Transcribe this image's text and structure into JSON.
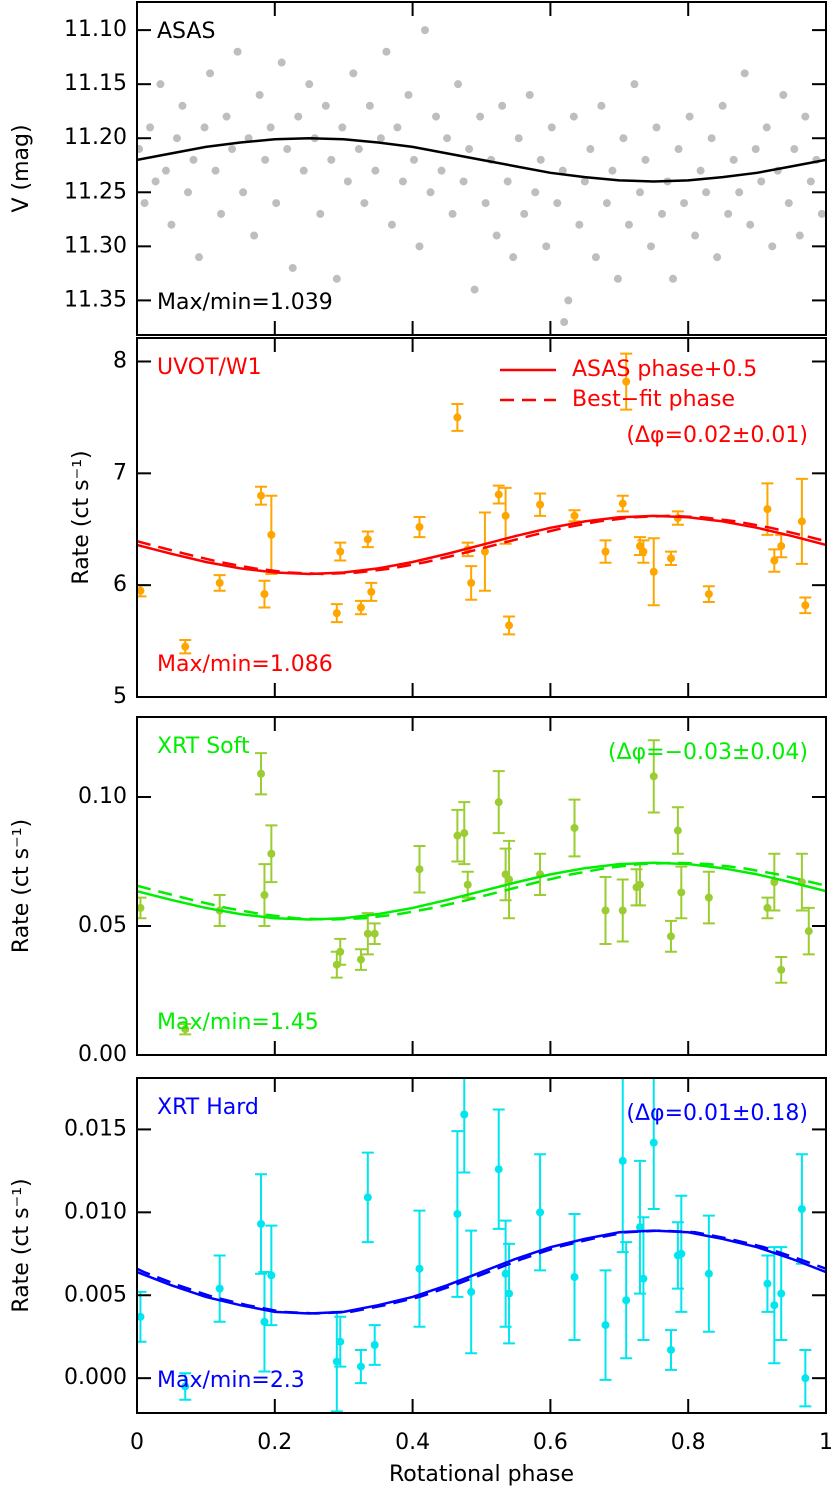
{
  "chart_data": [
    {
      "type": "scatter",
      "title": "ASAS",
      "annotation": "Max/min=1.039",
      "ylabel": "V (mag)",
      "text_color": "#000000",
      "xlim": [
        0,
        1
      ],
      "ylim": [
        11.382,
        11.074
      ],
      "yticks": [
        {
          "value": 11.1,
          "label": "11.10"
        },
        11.15,
        {
          "value": 11.2,
          "label": "11.20"
        },
        11.25,
        {
          "value": 11.3,
          "label": "11.30"
        },
        11.35
      ],
      "points": {
        "color": "#bebebe",
        "x": [
          0.003,
          0.011,
          0.019,
          0.027,
          0.034,
          0.042,
          0.05,
          0.058,
          0.066,
          0.074,
          0.082,
          0.09,
          0.098,
          0.106,
          0.114,
          0.122,
          0.13,
          0.138,
          0.146,
          0.154,
          0.162,
          0.17,
          0.178,
          0.186,
          0.194,
          0.202,
          0.21,
          0.218,
          0.226,
          0.234,
          0.242,
          0.25,
          0.258,
          0.266,
          0.274,
          0.282,
          0.29,
          0.298,
          0.306,
          0.314,
          0.322,
          0.33,
          0.338,
          0.346,
          0.354,
          0.362,
          0.37,
          0.378,
          0.386,
          0.394,
          0.402,
          0.41,
          0.418,
          0.426,
          0.434,
          0.442,
          0.45,
          0.458,
          0.466,
          0.474,
          0.482,
          0.49,
          0.498,
          0.506,
          0.514,
          0.522,
          0.53,
          0.538,
          0.546,
          0.554,
          0.562,
          0.57,
          0.578,
          0.586,
          0.594,
          0.602,
          0.61,
          0.618,
          0.626,
          0.634,
          0.642,
          0.65,
          0.658,
          0.666,
          0.674,
          0.682,
          0.69,
          0.698,
          0.706,
          0.714,
          0.722,
          0.73,
          0.738,
          0.746,
          0.754,
          0.762,
          0.77,
          0.778,
          0.786,
          0.794,
          0.802,
          0.81,
          0.818,
          0.826,
          0.834,
          0.842,
          0.85,
          0.858,
          0.866,
          0.874,
          0.882,
          0.89,
          0.898,
          0.906,
          0.914,
          0.922,
          0.93,
          0.938,
          0.946,
          0.954,
          0.962,
          0.97,
          0.978,
          0.986,
          0.994,
          0.62
        ],
        "values": [
          11.21,
          11.26,
          11.19,
          11.24,
          11.15,
          11.23,
          11.28,
          11.2,
          11.17,
          11.25,
          11.22,
          11.31,
          11.19,
          11.14,
          11.23,
          11.27,
          11.18,
          11.21,
          11.12,
          11.25,
          11.2,
          11.29,
          11.16,
          11.22,
          11.19,
          11.26,
          11.13,
          11.21,
          11.32,
          11.18,
          11.23,
          11.15,
          11.2,
          11.27,
          11.17,
          11.22,
          11.33,
          11.19,
          11.24,
          11.14,
          11.21,
          11.26,
          11.17,
          11.23,
          11.2,
          11.12,
          11.28,
          11.19,
          11.24,
          11.16,
          11.22,
          11.3,
          11.1,
          11.25,
          11.18,
          11.23,
          11.2,
          11.27,
          11.15,
          11.24,
          11.21,
          11.34,
          11.18,
          11.26,
          11.22,
          11.29,
          11.17,
          11.24,
          11.31,
          11.2,
          11.27,
          11.16,
          11.25,
          11.22,
          11.3,
          11.19,
          11.26,
          11.23,
          11.35,
          11.18,
          11.28,
          11.24,
          11.21,
          11.31,
          11.17,
          11.26,
          11.23,
          11.33,
          11.2,
          11.28,
          11.15,
          11.25,
          11.22,
          11.3,
          11.19,
          11.27,
          11.24,
          11.33,
          11.21,
          11.26,
          11.18,
          11.29,
          11.23,
          11.25,
          11.2,
          11.31,
          11.17,
          11.27,
          11.22,
          11.25,
          11.14,
          11.28,
          11.21,
          11.24,
          11.19,
          11.3,
          11.23,
          11.16,
          11.26,
          11.21,
          11.29,
          11.18,
          11.24,
          11.22,
          11.27,
          11.37
        ]
      },
      "lines": [
        {
          "color": "#000000",
          "dash": false,
          "x": [
            0,
            0.05,
            0.1,
            0.15,
            0.2,
            0.25,
            0.3,
            0.35,
            0.4,
            0.45,
            0.5,
            0.55,
            0.6,
            0.65,
            0.7,
            0.75,
            0.8,
            0.85,
            0.9,
            0.95,
            1
          ],
          "values": [
            11.22,
            11.214,
            11.208,
            11.204,
            11.201,
            11.2,
            11.201,
            11.204,
            11.208,
            11.214,
            11.22,
            11.226,
            11.232,
            11.236,
            11.239,
            11.24,
            11.239,
            11.236,
            11.232,
            11.226,
            11.22
          ]
        }
      ]
    },
    {
      "type": "errorbar",
      "title": "UVOT/W1",
      "annotation": "Max/min=1.086",
      "note": "(Δφ=0.02±0.01)",
      "ylabel": "Rate (ct s⁻¹)",
      "text_color": "#ff0000",
      "legend": "upper right",
      "xlim": [
        0,
        1
      ],
      "ylim": [
        5,
        8.21
      ],
      "yticks": [
        5,
        6,
        7,
        8
      ],
      "points": {
        "color": "#ffa500",
        "x": [
          0.005,
          0.07,
          0.12,
          0.18,
          0.185,
          0.195,
          0.29,
          0.295,
          0.325,
          0.335,
          0.34,
          0.41,
          0.465,
          0.48,
          0.485,
          0.505,
          0.525,
          0.535,
          0.54,
          0.585,
          0.635,
          0.68,
          0.705,
          0.71,
          0.73,
          0.735,
          0.75,
          0.775,
          0.785,
          0.83,
          0.915,
          0.925,
          0.935,
          0.965,
          0.97
        ],
        "values": [
          5.95,
          5.45,
          6.02,
          6.8,
          5.92,
          6.45,
          5.75,
          6.3,
          5.8,
          6.41,
          5.94,
          6.52,
          7.5,
          6.32,
          6.02,
          6.3,
          6.81,
          6.62,
          5.64,
          6.72,
          6.62,
          6.3,
          6.73,
          7.82,
          6.35,
          6.3,
          6.12,
          6.24,
          6.6,
          5.92,
          6.68,
          6.22,
          6.35,
          6.57,
          5.82
        ],
        "errors": [
          0.05,
          0.06,
          0.07,
          0.08,
          0.12,
          0.35,
          0.08,
          0.08,
          0.06,
          0.07,
          0.08,
          0.09,
          0.12,
          0.06,
          0.15,
          0.35,
          0.08,
          0.25,
          0.08,
          0.1,
          0.05,
          0.1,
          0.07,
          0.25,
          0.08,
          0.1,
          0.3,
          0.06,
          0.06,
          0.07,
          0.23,
          0.1,
          0.1,
          0.38,
          0.07
        ]
      },
      "lines": [
        {
          "name": "ASAS phase+0.5",
          "color": "#ff0000",
          "dash": false,
          "x": [
            0,
            0.05,
            0.1,
            0.15,
            0.2,
            0.25,
            0.3,
            0.35,
            0.4,
            0.45,
            0.5,
            0.55,
            0.6,
            0.65,
            0.7,
            0.75,
            0.8,
            0.85,
            0.9,
            0.95,
            1
          ],
          "values": [
            6.36,
            6.28,
            6.207,
            6.15,
            6.113,
            6.1,
            6.113,
            6.15,
            6.207,
            6.28,
            6.36,
            6.44,
            6.513,
            6.57,
            6.607,
            6.62,
            6.607,
            6.57,
            6.513,
            6.44,
            6.36
          ]
        },
        {
          "name": "Best−fit phase",
          "color": "#ff0000",
          "dash": true,
          "x": [
            0,
            0.02,
            0.07,
            0.12,
            0.17,
            0.22,
            0.27,
            0.32,
            0.37,
            0.42,
            0.47,
            0.52,
            0.57,
            0.62,
            0.67,
            0.72,
            0.77,
            0.82,
            0.87,
            0.92,
            0.97,
            1
          ],
          "values": [
            6.393,
            6.36,
            6.28,
            6.207,
            6.15,
            6.113,
            6.1,
            6.113,
            6.15,
            6.207,
            6.28,
            6.36,
            6.44,
            6.513,
            6.57,
            6.607,
            6.62,
            6.607,
            6.57,
            6.513,
            6.44,
            6.393
          ]
        }
      ]
    },
    {
      "type": "errorbar",
      "title": "XRT Soft",
      "annotation": "Max/min=1.45",
      "note": "(Δφ=−0.03±0.04)",
      "ylabel": "Rate (ct s⁻¹)",
      "text_color": "#00ee00",
      "xlim": [
        0,
        1
      ],
      "ylim": [
        0,
        0.131
      ],
      "yticks": [
        {
          "value": 0,
          "label": "0.00"
        },
        {
          "value": 0.05,
          "label": "0.05"
        },
        {
          "value": 0.1,
          "label": "0.10"
        }
      ],
      "points": {
        "color": "#9acd32",
        "x": [
          0.005,
          0.07,
          0.12,
          0.18,
          0.185,
          0.195,
          0.29,
          0.295,
          0.325,
          0.335,
          0.345,
          0.41,
          0.465,
          0.475,
          0.48,
          0.525,
          0.535,
          0.54,
          0.585,
          0.635,
          0.68,
          0.705,
          0.725,
          0.73,
          0.75,
          0.775,
          0.785,
          0.79,
          0.83,
          0.915,
          0.925,
          0.935,
          0.965,
          0.975
        ],
        "values": [
          0.057,
          0.01,
          0.056,
          0.109,
          0.062,
          0.078,
          0.035,
          0.04,
          0.037,
          0.047,
          0.047,
          0.072,
          0.085,
          0.086,
          0.066,
          0.098,
          0.07,
          0.068,
          0.07,
          0.088,
          0.056,
          0.056,
          0.065,
          0.066,
          0.108,
          0.046,
          0.087,
          0.063,
          0.061,
          0.057,
          0.067,
          0.033,
          0.067,
          0.048
        ],
        "errors": [
          0.004,
          0.002,
          0.006,
          0.008,
          0.012,
          0.011,
          0.005,
          0.005,
          0.004,
          0.008,
          0.004,
          0.009,
          0.01,
          0.012,
          0.005,
          0.012,
          0.01,
          0.015,
          0.008,
          0.011,
          0.013,
          0.012,
          0.007,
          0.008,
          0.014,
          0.006,
          0.009,
          0.01,
          0.01,
          0.004,
          0.011,
          0.005,
          0.011,
          0.009
        ]
      },
      "lines": [
        {
          "color": "#00ee00",
          "dash": false,
          "x": [
            0,
            0.05,
            0.1,
            0.15,
            0.2,
            0.25,
            0.3,
            0.35,
            0.4,
            0.45,
            0.5,
            0.55,
            0.6,
            0.65,
            0.7,
            0.75,
            0.8,
            0.85,
            0.9,
            0.95,
            1
          ],
          "values": [
            0.0635,
            0.0601,
            0.057,
            0.0546,
            0.053,
            0.0525,
            0.053,
            0.0546,
            0.057,
            0.0601,
            0.0635,
            0.0669,
            0.07,
            0.0724,
            0.074,
            0.0745,
            0.074,
            0.0724,
            0.07,
            0.0669,
            0.0635
          ]
        },
        {
          "color": "#00ee00",
          "dash": true,
          "x": [
            0,
            0.03,
            0.08,
            0.13,
            0.18,
            0.23,
            0.28,
            0.33,
            0.38,
            0.43,
            0.48,
            0.53,
            0.58,
            0.63,
            0.68,
            0.73,
            0.78,
            0.83,
            0.88,
            0.93,
            0.98,
            1
          ],
          "values": [
            0.0656,
            0.0635,
            0.0601,
            0.057,
            0.0546,
            0.053,
            0.0525,
            0.053,
            0.0546,
            0.057,
            0.0601,
            0.0635,
            0.0669,
            0.07,
            0.0724,
            0.074,
            0.0745,
            0.074,
            0.0724,
            0.07,
            0.0669,
            0.0656
          ]
        }
      ]
    },
    {
      "type": "errorbar",
      "title": "XRT Hard",
      "annotation": "Max/min=2.3",
      "note": "(Δφ=0.01±0.18)",
      "ylabel": "Rate (ct s⁻¹)",
      "xlabel": "Rotational phase",
      "text_color": "#0000ff",
      "xlim": [
        0,
        1
      ],
      "xticks": [
        0,
        0.2,
        0.4,
        0.6,
        0.8,
        1
      ],
      "ylim": [
        -0.0021,
        0.0181
      ],
      "yticks": [
        {
          "value": 0,
          "label": "0.000"
        },
        {
          "value": 0.005,
          "label": "0.005"
        },
        {
          "value": 0.01,
          "label": "0.010"
        },
        {
          "value": 0.015,
          "label": "0.015"
        }
      ],
      "points": {
        "color": "#00e5ee",
        "x": [
          0.005,
          0.07,
          0.12,
          0.18,
          0.185,
          0.195,
          0.29,
          0.295,
          0.325,
          0.335,
          0.345,
          0.41,
          0.465,
          0.475,
          0.485,
          0.525,
          0.535,
          0.54,
          0.585,
          0.635,
          0.68,
          0.705,
          0.71,
          0.73,
          0.735,
          0.75,
          0.775,
          0.785,
          0.79,
          0.83,
          0.915,
          0.925,
          0.935,
          0.965,
          0.97
        ],
        "values": [
          0.0037,
          -0.0005,
          0.0054,
          0.0093,
          0.0034,
          0.0062,
          0.001,
          0.0022,
          0.0007,
          0.0109,
          0.002,
          0.0066,
          0.0099,
          0.0159,
          0.0052,
          0.0126,
          0.0063,
          0.0051,
          0.01,
          0.0061,
          0.0032,
          0.0131,
          0.0047,
          0.0091,
          0.006,
          0.0142,
          0.0017,
          0.0074,
          0.0075,
          0.0063,
          0.0057,
          0.0044,
          0.0051,
          0.0102,
          0
        ],
        "errors": [
          0.0015,
          0.0008,
          0.002,
          0.003,
          0.003,
          0.003,
          0.003,
          0.0015,
          0.001,
          0.0027,
          0.0012,
          0.0035,
          0.005,
          0.0035,
          0.0037,
          0.0036,
          0.0032,
          0.003,
          0.0035,
          0.0038,
          0.0033,
          0.0055,
          0.0035,
          0.004,
          0.0037,
          0.004,
          0.0012,
          0.002,
          0.0035,
          0.0035,
          0.0017,
          0.0035,
          0.0028,
          0.0033,
          0.0017
        ]
      },
      "lines": [
        {
          "color": "#0000ff",
          "dash": false,
          "x": [
            0,
            0.05,
            0.1,
            0.15,
            0.2,
            0.25,
            0.3,
            0.35,
            0.4,
            0.45,
            0.5,
            0.55,
            0.6,
            0.65,
            0.7,
            0.75,
            0.8,
            0.85,
            0.9,
            0.95,
            1
          ],
          "values": [
            0.0064,
            0.0056,
            0.0049,
            0.0044,
            0.004,
            0.0039,
            0.004,
            0.0044,
            0.0049,
            0.0056,
            0.0064,
            0.0072,
            0.0079,
            0.0084,
            0.0088,
            0.0089,
            0.0088,
            0.0084,
            0.0079,
            0.0072,
            0.0064
          ]
        },
        {
          "color": "#0000ff",
          "dash": true,
          "x": [
            0,
            0.01,
            0.06,
            0.11,
            0.16,
            0.21,
            0.26,
            0.31,
            0.36,
            0.41,
            0.46,
            0.51,
            0.56,
            0.61,
            0.66,
            0.71,
            0.76,
            0.81,
            0.86,
            0.91,
            0.96,
            1
          ],
          "values": [
            0.0066,
            0.0064,
            0.0056,
            0.0049,
            0.0044,
            0.004,
            0.0039,
            0.004,
            0.0044,
            0.0049,
            0.0056,
            0.0064,
            0.0072,
            0.0079,
            0.0084,
            0.0088,
            0.0089,
            0.0088,
            0.0084,
            0.0079,
            0.0072,
            0.0066
          ]
        }
      ]
    }
  ]
}
